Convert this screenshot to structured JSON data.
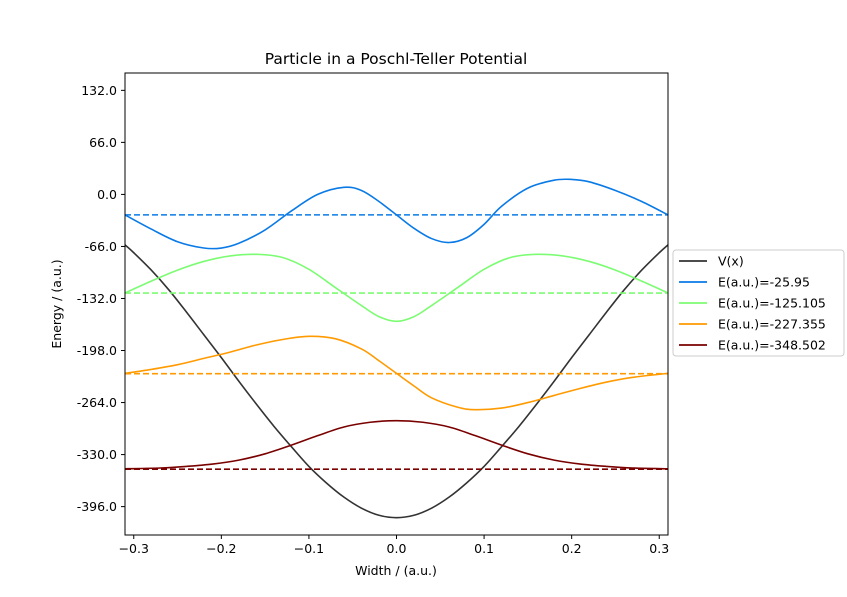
{
  "chart_data": {
    "type": "line",
    "title": "Particle in a Poschl-Teller Potential",
    "xlabel": "Width / (a.u.)",
    "ylabel": "Energy / (a.u.)",
    "xlim": [
      -0.31,
      0.31
    ],
    "ylim": [
      -432,
      154
    ],
    "x_ticks": [
      -0.3,
      -0.2,
      -0.1,
      0.0,
      0.1,
      0.2,
      0.3
    ],
    "x_tick_labels": [
      "−0.3",
      "−0.2",
      "−0.1",
      "0.0",
      "0.1",
      "0.2",
      "0.3"
    ],
    "y_ticks": [
      132.0,
      66.0,
      0.0,
      -66.0,
      -132.0,
      -198.0,
      -264.0,
      -330.0,
      -396.0
    ],
    "y_tick_labels": [
      "132.0",
      "66.0",
      "0.0",
      "-66.0",
      "-132.0",
      "-198.0",
      "-264.0",
      "-330.0",
      "-396.0"
    ],
    "grid": false,
    "legend_position": "right-outside",
    "potential": {
      "name": "V(x)",
      "color": "#333333",
      "x": [
        -0.31,
        -0.3,
        -0.28,
        -0.26,
        -0.24,
        -0.22,
        -0.2,
        -0.18,
        -0.16,
        -0.14,
        -0.12,
        -0.1,
        -0.08,
        -0.06,
        -0.04,
        -0.02,
        0.0,
        0.02,
        0.04,
        0.06,
        0.08,
        0.1,
        0.12,
        0.14,
        0.16,
        0.18,
        0.2,
        0.22,
        0.24,
        0.26,
        0.28,
        0.3,
        0.31
      ],
      "y": [
        -64,
        -74,
        -96,
        -121,
        -149,
        -178,
        -207,
        -237,
        -266,
        -294,
        -320,
        -345,
        -366,
        -384,
        -398,
        -407,
        -410,
        -407,
        -398,
        -384,
        -366,
        -345,
        -320,
        -294,
        -266,
        -237,
        -207,
        -178,
        -149,
        -121,
        -96,
        -74,
        -64
      ]
    },
    "series": [
      {
        "name": "E(a.u.)=-25.95",
        "energy": -25.95,
        "color": "#0a7ae6",
        "x": [
          -0.31,
          -0.28,
          -0.25,
          -0.22,
          -0.2,
          -0.18,
          -0.15,
          -0.12,
          -0.09,
          -0.06,
          -0.04,
          -0.02,
          0.0,
          0.02,
          0.04,
          0.06,
          0.08,
          0.1,
          0.12,
          0.15,
          0.18,
          0.2,
          0.22,
          0.25,
          0.28,
          0.31
        ],
        "y": [
          -26,
          -44,
          -60,
          -68,
          -68,
          -62,
          -45,
          -21,
          0,
          9,
          5,
          -9,
          -26,
          -43,
          -56,
          -61,
          -55,
          -38,
          -15,
          8,
          18,
          19,
          16,
          5,
          -9,
          -26
        ]
      },
      {
        "name": "E(a.u.)=-125.105",
        "energy": -125.105,
        "color": "#7cfc72",
        "x": [
          -0.31,
          -0.28,
          -0.25,
          -0.22,
          -0.19,
          -0.16,
          -0.13,
          -0.1,
          -0.07,
          -0.04,
          -0.02,
          0.0,
          0.02,
          0.04,
          0.07,
          0.1,
          0.13,
          0.16,
          0.19,
          0.22,
          0.25,
          0.28,
          0.31
        ],
        "y": [
          -125,
          -110,
          -96,
          -85,
          -78,
          -76,
          -80,
          -95,
          -118,
          -141,
          -155,
          -161,
          -155,
          -141,
          -118,
          -95,
          -80,
          -76,
          -78,
          -85,
          -96,
          -110,
          -125
        ]
      },
      {
        "name": "E(a.u.)=-227.355",
        "energy": -227.355,
        "color": "#ff9a00",
        "x": [
          -0.31,
          -0.28,
          -0.25,
          -0.22,
          -0.19,
          -0.16,
          -0.13,
          -0.1,
          -0.07,
          -0.04,
          -0.02,
          0.0,
          0.02,
          0.04,
          0.07,
          0.09,
          0.12,
          0.15,
          0.18,
          0.21,
          0.24,
          0.27,
          0.31
        ],
        "y": [
          -227,
          -222,
          -216,
          -208,
          -200,
          -191,
          -184,
          -180,
          -183,
          -196,
          -211,
          -227,
          -243,
          -258,
          -270,
          -273,
          -271,
          -264,
          -255,
          -246,
          -238,
          -232,
          -227
        ]
      },
      {
        "name": "E(a.u.)=-348.502",
        "energy": -348.502,
        "color": "#7a0000",
        "x": [
          -0.31,
          -0.27,
          -0.24,
          -0.21,
          -0.18,
          -0.15,
          -0.12,
          -0.09,
          -0.06,
          -0.03,
          0.0,
          0.03,
          0.06,
          0.09,
          0.12,
          0.15,
          0.18,
          0.21,
          0.24,
          0.27,
          0.31
        ],
        "y": [
          -348,
          -347,
          -345,
          -342,
          -337,
          -329,
          -318,
          -306,
          -295,
          -289,
          -287,
          -289,
          -295,
          -306,
          -318,
          -329,
          -337,
          -342,
          -345,
          -347,
          -348
        ]
      }
    ]
  }
}
